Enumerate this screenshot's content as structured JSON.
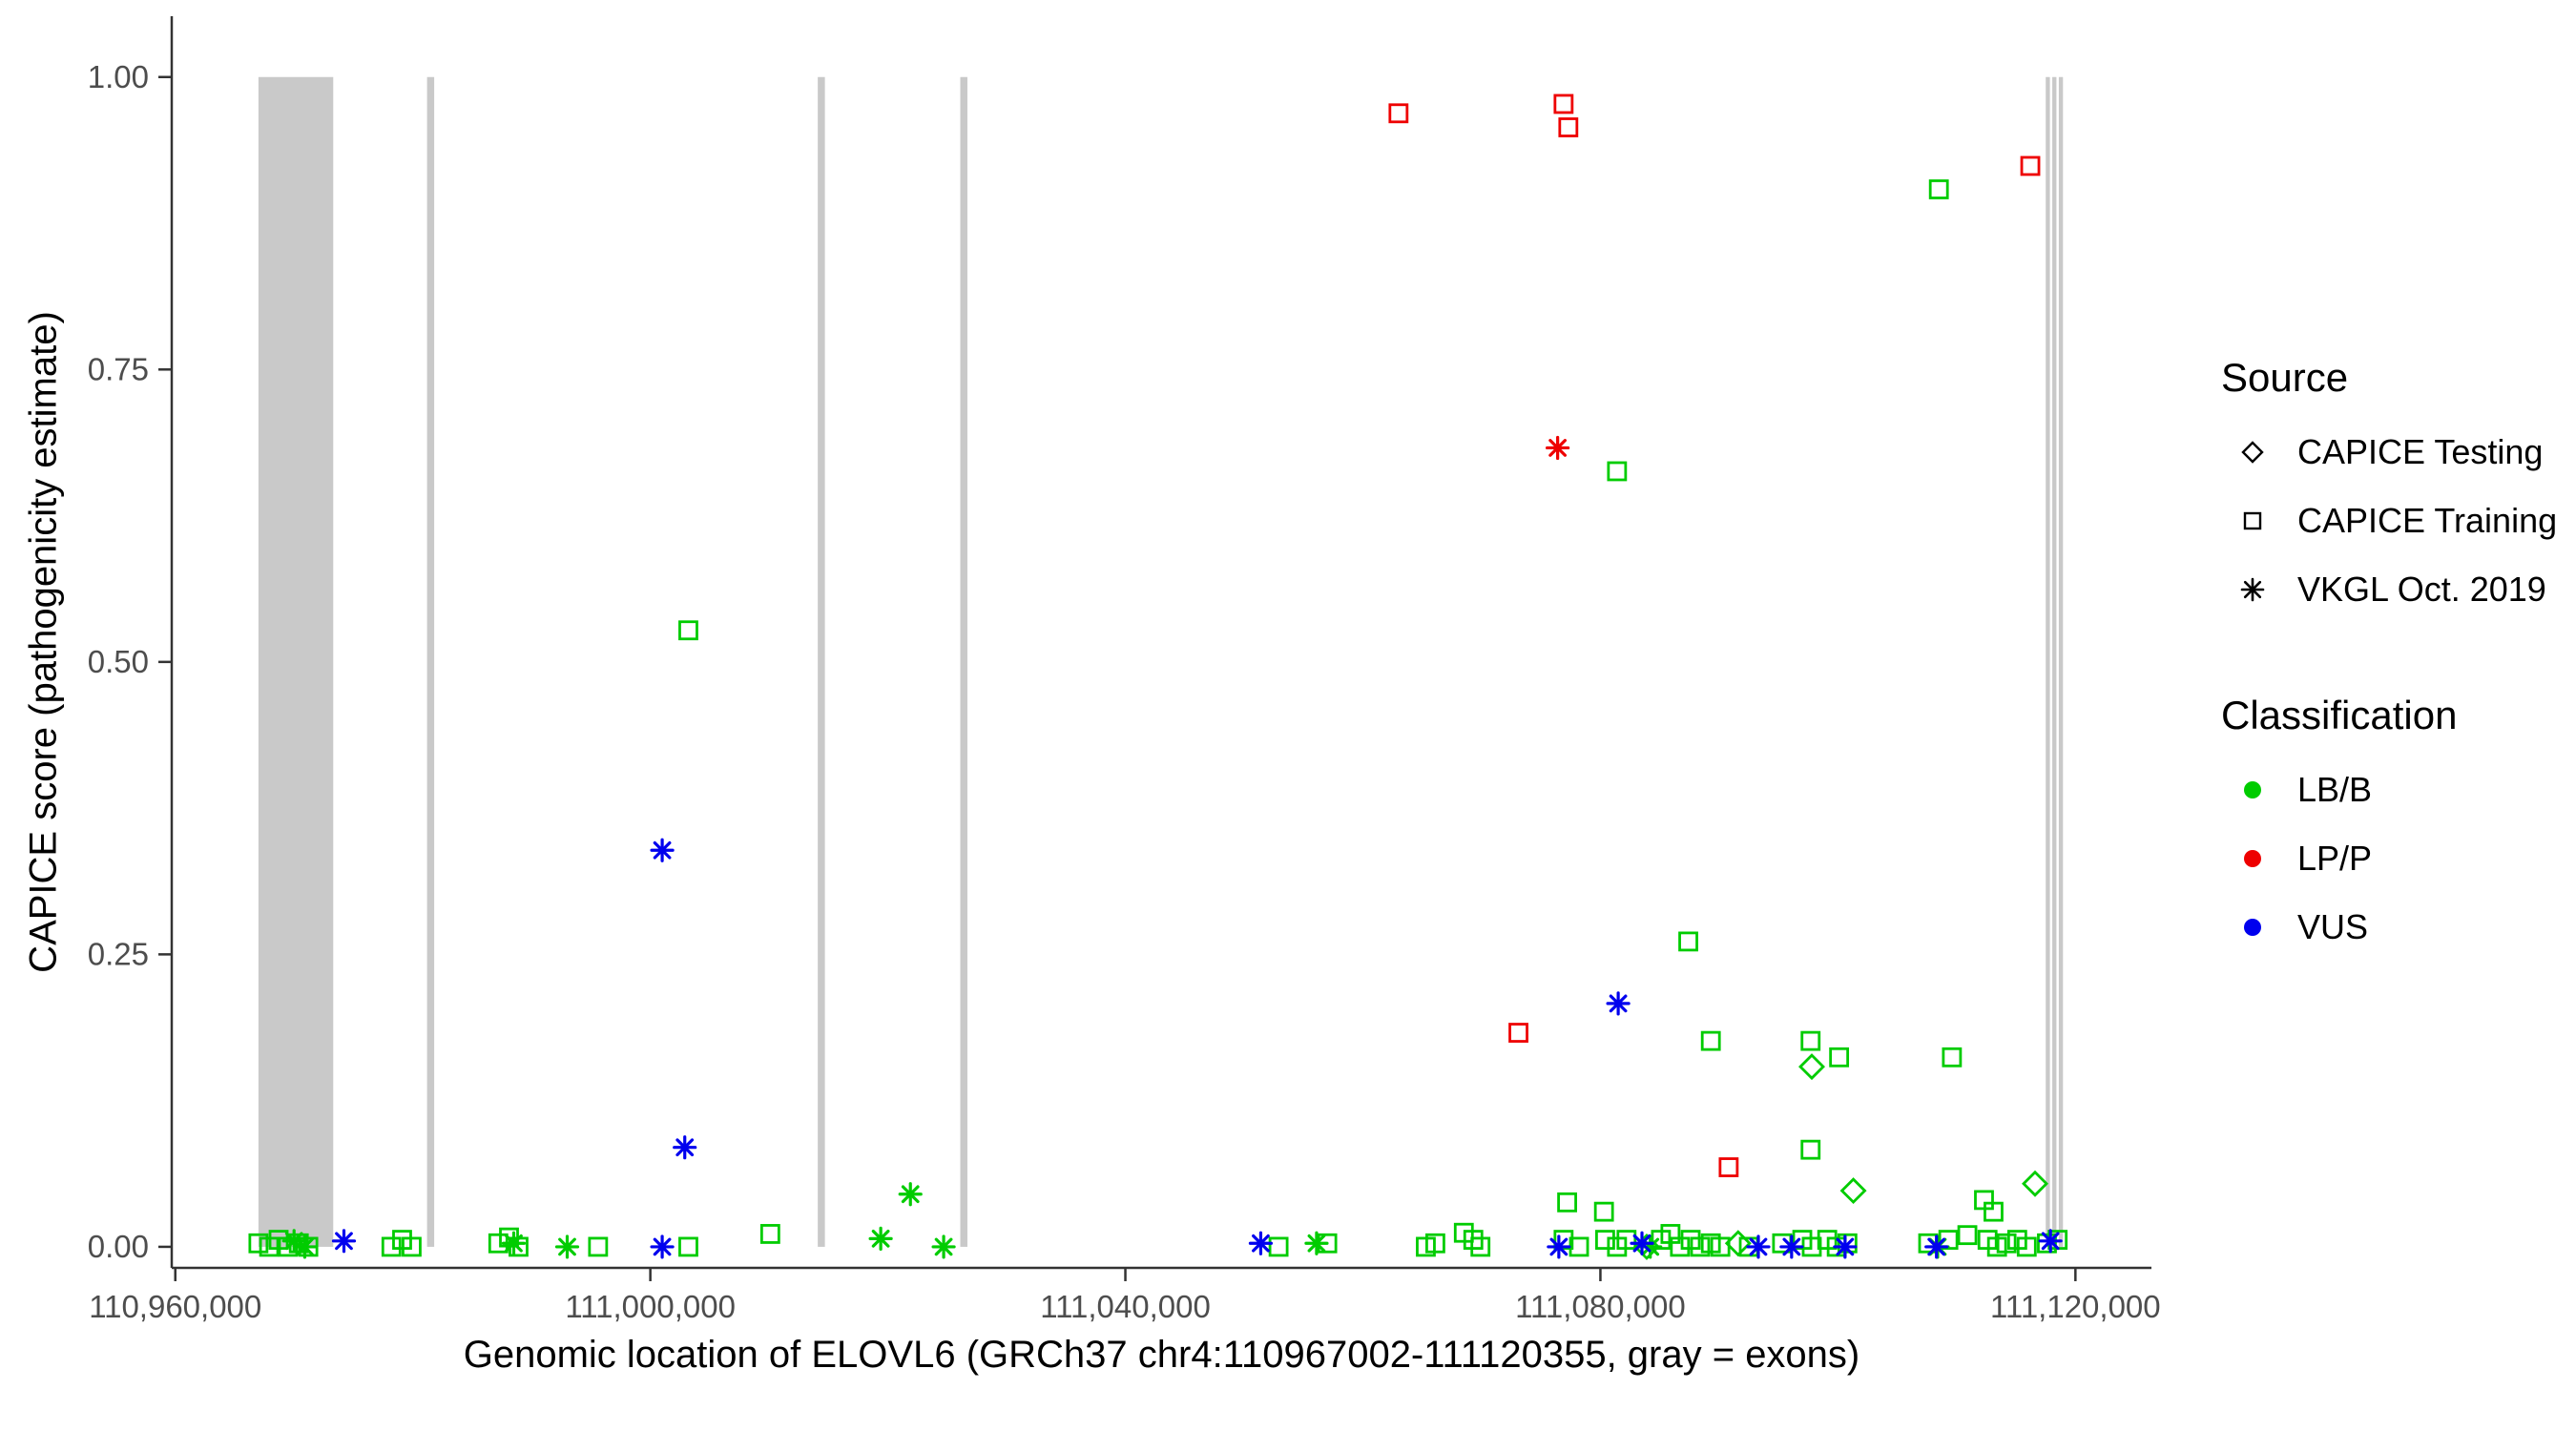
{
  "chart_data": {
    "type": "scatter",
    "title": "",
    "xlabel": "Genomic location of ELOVL6 (GRCh37 chr4:110967002-111120355, gray = exons)",
    "ylabel": "CAPICE score (pathogenicity estimate)",
    "xlim": [
      110959700,
      111126400
    ],
    "ylim": [
      -0.018,
      1.052
    ],
    "grid": "off",
    "legend_position": "right",
    "x_ticks": [
      {
        "value": 110960000,
        "label": "110,960,000"
      },
      {
        "value": 111000000,
        "label": "111,000,000"
      },
      {
        "value": 111040000,
        "label": "111,040,000"
      },
      {
        "value": 111080000,
        "label": "111,080,000"
      },
      {
        "value": 111120000,
        "label": "111,120,000"
      }
    ],
    "y_ticks": [
      {
        "value": 0,
        "label": "0.00"
      },
      {
        "value": 0.25,
        "label": "0.25"
      },
      {
        "value": 0.5,
        "label": "0.50"
      },
      {
        "value": 0.75,
        "label": "0.75"
      },
      {
        "value": 1,
        "label": "1.00"
      }
    ],
    "colors": {
      "lb_b": "#00CC00",
      "lp_p": "#EE0000",
      "vus": "#0000EE",
      "exon": "#C9C9C9",
      "axis_text": "#4d4d4d",
      "axis_line": "#333333"
    },
    "exons": [
      [
        110967002,
        110973300
      ],
      [
        110981200,
        110981800
      ],
      [
        111014100,
        111014700
      ],
      [
        111026100,
        111026700
      ],
      [
        111117500,
        111117850
      ],
      [
        111118050,
        111118400
      ],
      [
        111118600,
        111118950
      ]
    ],
    "legend": {
      "source": {
        "title": "Source",
        "items": [
          {
            "label": "CAPICE Testing",
            "shape": "diamond"
          },
          {
            "label": "CAPICE Training",
            "shape": "square"
          },
          {
            "label": "VKGL Oct. 2019",
            "shape": "asterisk"
          }
        ]
      },
      "classification": {
        "title": "Classification",
        "items": [
          {
            "label": "LB/B",
            "color": "#00CC00"
          },
          {
            "label": "LP/P",
            "color": "#EE0000"
          },
          {
            "label": "VUS",
            "color": "#0000EE"
          }
        ]
      }
    },
    "series": [
      {
        "name": "CAPICE Training - LP/P",
        "source": "CAPICE Training",
        "classification": "LP/P",
        "shape": "square",
        "color": "#EE0000",
        "points": [
          [
            111063000,
            0.969
          ],
          [
            111076900,
            0.977
          ],
          [
            111077300,
            0.957
          ],
          [
            111116200,
            0.924
          ],
          [
            111073100,
            0.183
          ],
          [
            111090800,
            0.068
          ]
        ]
      },
      {
        "name": "VKGL - LP/P",
        "source": "VKGL Oct. 2019",
        "classification": "LP/P",
        "shape": "asterisk",
        "color": "#EE0000",
        "points": [
          [
            111076400,
            0.683
          ]
        ]
      },
      {
        "name": "CAPICE Training - LB/B",
        "source": "CAPICE Training",
        "classification": "LB/B",
        "shape": "square",
        "color": "#00CC00",
        "points": [
          [
            111003200,
            0.527
          ],
          [
            111081400,
            0.663
          ],
          [
            111108500,
            0.904
          ],
          [
            111087400,
            0.261
          ],
          [
            111089300,
            0.176
          ],
          [
            111097700,
            0.176
          ],
          [
            111100100,
            0.162
          ],
          [
            111109600,
            0.162
          ],
          [
            111097700,
            0.083
          ],
          [
            111010100,
            0.011
          ],
          [
            111068500,
            0.012
          ],
          [
            111077200,
            0.038
          ],
          [
            111080300,
            0.03
          ],
          [
            111085900,
            0.011
          ],
          [
            111110900,
            0.01
          ],
          [
            111112300,
            0.04
          ],
          [
            111113100,
            0.03
          ],
          [
            110967000,
            0.003
          ],
          [
            110967900,
            0
          ],
          [
            110968700,
            0.006
          ],
          [
            110969500,
            0
          ],
          [
            110970400,
            0.003
          ],
          [
            110971200,
            0
          ],
          [
            110978200,
            0
          ],
          [
            110979100,
            0.006
          ],
          [
            110979900,
            0
          ],
          [
            110987200,
            0.003
          ],
          [
            110988100,
            0.008
          ],
          [
            110988900,
            0
          ],
          [
            110995600,
            0
          ],
          [
            111003200,
            0
          ],
          [
            111052900,
            0
          ],
          [
            111057000,
            0.003
          ],
          [
            111065300,
            0
          ],
          [
            111066100,
            0.003
          ],
          [
            111069300,
            0.006
          ],
          [
            111069900,
            0
          ],
          [
            111076900,
            0.006
          ],
          [
            111078200,
            0
          ],
          [
            111080400,
            0.006
          ],
          [
            111081400,
            0
          ],
          [
            111082200,
            0.006
          ],
          [
            111085100,
            0.006
          ],
          [
            111086700,
            0
          ],
          [
            111087600,
            0.006
          ],
          [
            111088400,
            0
          ],
          [
            111089300,
            0.003
          ],
          [
            111090100,
            0
          ],
          [
            111092500,
            0
          ],
          [
            111095300,
            0.003
          ],
          [
            111097000,
            0.006
          ],
          [
            111097800,
            0
          ],
          [
            111099100,
            0.006
          ],
          [
            111099900,
            0
          ],
          [
            111100800,
            0.003
          ],
          [
            111107600,
            0.003
          ],
          [
            111109300,
            0.006
          ],
          [
            111112600,
            0.006
          ],
          [
            111113400,
            0
          ],
          [
            111114200,
            0.003
          ],
          [
            111115100,
            0.006
          ],
          [
            111115900,
            0
          ],
          [
            111117600,
            0.003
          ],
          [
            111118500,
            0.006
          ]
        ]
      },
      {
        "name": "CAPICE Testing - LB/B",
        "source": "CAPICE Testing",
        "classification": "LB/B",
        "shape": "diamond",
        "color": "#00CC00",
        "points": [
          [
            111097800,
            0.154
          ],
          [
            111101300,
            0.048
          ],
          [
            111116600,
            0.054
          ],
          [
            111091600,
            0.003
          ],
          [
            111083900,
            0
          ]
        ]
      },
      {
        "name": "VKGL - LB/B",
        "source": "VKGL Oct. 2019",
        "classification": "LB/B",
        "shape": "asterisk",
        "color": "#00CC00",
        "points": [
          [
            111021900,
            0.045
          ],
          [
            111019400,
            0.007
          ],
          [
            111024700,
            0
          ],
          [
            110970000,
            0.005
          ],
          [
            110970900,
            0
          ],
          [
            110988500,
            0.003
          ],
          [
            110993000,
            0
          ],
          [
            111056100,
            0.003
          ],
          [
            111084200,
            0
          ],
          [
            111108400,
            0
          ]
        ]
      },
      {
        "name": "VKGL - VUS",
        "source": "VKGL Oct. 2019",
        "classification": "VUS",
        "shape": "asterisk",
        "color": "#0000EE",
        "points": [
          [
            111001000,
            0.339
          ],
          [
            111002900,
            0.085
          ],
          [
            111081500,
            0.208
          ],
          [
            110974200,
            0.005
          ],
          [
            111001000,
            0
          ],
          [
            111051400,
            0.003
          ],
          [
            111076500,
            0
          ],
          [
            111083500,
            0.003
          ],
          [
            111093300,
            0
          ],
          [
            111096100,
            0
          ],
          [
            111100600,
            0
          ],
          [
            111108300,
            0
          ],
          [
            111117900,
            0.005
          ]
        ]
      }
    ]
  }
}
